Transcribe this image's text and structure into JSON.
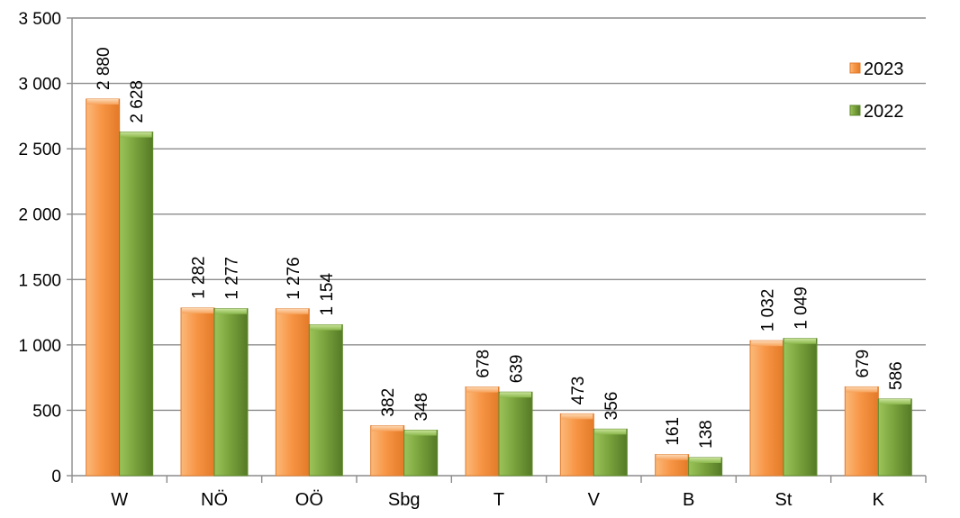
{
  "chart_data": {
    "type": "bar",
    "categories": [
      "W",
      "NÖ",
      "OÖ",
      "Sbg",
      "T",
      "V",
      "B",
      "St",
      "K"
    ],
    "series": [
      {
        "name": "2023",
        "values": [
          2880,
          1282,
          1276,
          382,
          678,
          473,
          161,
          1032,
          679
        ],
        "labels": [
          "2 880",
          "1 282",
          "1 276",
          "382",
          "678",
          "473",
          "161",
          "1 032",
          "679"
        ],
        "color": "#f79646"
      },
      {
        "name": "2022",
        "values": [
          2628,
          1277,
          1154,
          348,
          639,
          356,
          138,
          1049,
          586
        ],
        "labels": [
          "2 628",
          "1 277",
          "1 154",
          "348",
          "639",
          "356",
          "138",
          "1 049",
          "586"
        ],
        "color": "#77a03b"
      }
    ],
    "ylim": [
      0,
      3500
    ],
    "yticks": [
      0,
      500,
      1000,
      1500,
      2000,
      2500,
      3000,
      3500
    ],
    "ytick_labels": [
      "0",
      "500",
      "1 000",
      "1 500",
      "2 000",
      "2 500",
      "3 000",
      "3 500"
    ],
    "grid": true,
    "legend_position": "top-right"
  }
}
